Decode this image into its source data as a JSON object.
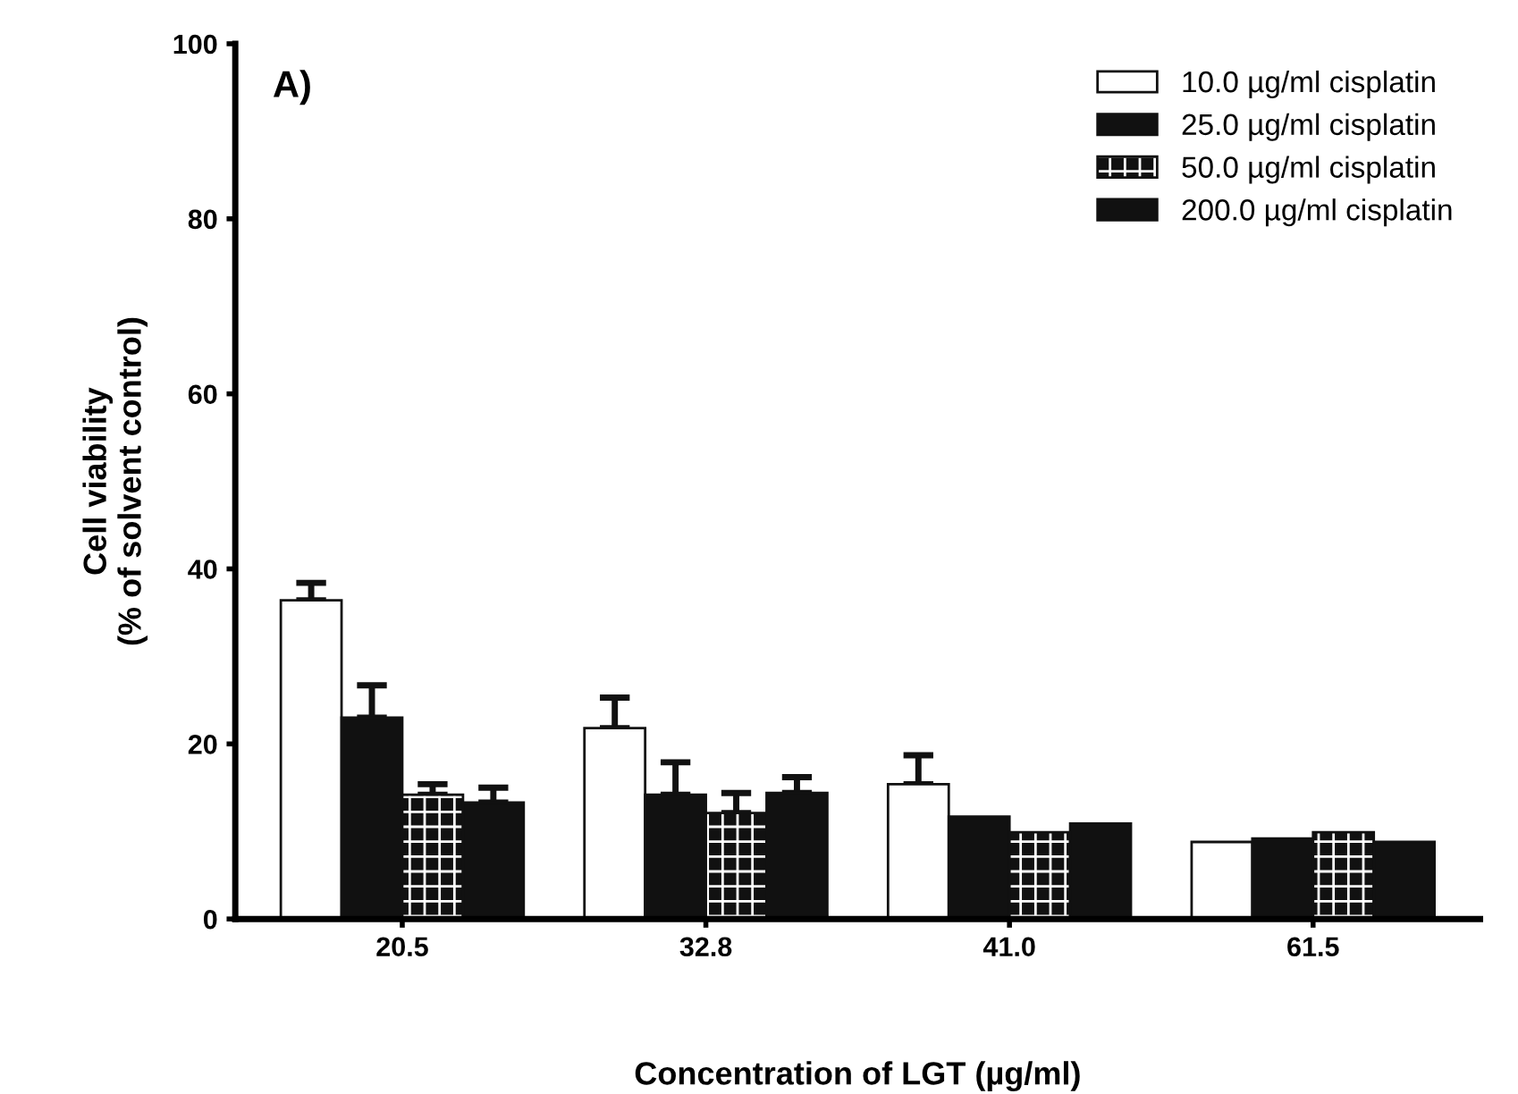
{
  "chart_data": {
    "type": "bar",
    "xlabel": "Concentration of LGT (µg/ml)",
    "ylabel": "Cell viability\n(% of solvent control)",
    "annotations": [
      "A)"
    ],
    "categories": [
      "20.5",
      "32.8",
      "41.0",
      "61.5"
    ],
    "series": [
      {
        "name": "10.0 µg/ml cisplatin",
        "color": "#ffffff",
        "values": [
          36.4,
          21.8,
          15.4,
          8.8
        ],
        "errors": [
          2.0,
          3.5,
          3.3,
          null
        ]
      },
      {
        "name": "25.0 µg/ml cisplatin",
        "color": "#111111",
        "values": [
          23.0,
          14.2,
          11.7,
          9.2
        ],
        "errors": [
          3.7,
          3.7,
          null,
          null
        ]
      },
      {
        "name": "50.0 µg/ml cisplatin",
        "color": "#111111",
        "values": [
          14.2,
          12.1,
          9.9,
          9.9
        ],
        "errors": [
          1.2,
          2.3,
          null,
          null
        ]
      },
      {
        "name": "200.0 µg/ml cisplatin",
        "color": "#111111",
        "values": [
          13.3,
          14.4,
          10.9,
          8.8
        ],
        "errors": [
          1.7,
          1.8,
          null,
          null
        ]
      }
    ],
    "ylim": [
      0,
      100
    ],
    "yticks": [
      0,
      20,
      40,
      60,
      80,
      100
    ],
    "grid": false,
    "legend": "top right"
  }
}
